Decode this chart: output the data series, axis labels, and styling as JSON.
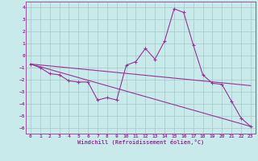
{
  "xlabel": "Windchill (Refroidissement éolien,°C)",
  "bg_color": "#c8eaea",
  "line_color": "#993399",
  "grid_color": "#aaccaa",
  "xlim": [
    -0.5,
    23.5
  ],
  "ylim": [
    -6.5,
    4.5
  ],
  "xticks": [
    0,
    1,
    2,
    3,
    4,
    5,
    6,
    7,
    8,
    9,
    10,
    11,
    12,
    13,
    14,
    15,
    16,
    17,
    18,
    19,
    20,
    21,
    22,
    23
  ],
  "yticks": [
    -6,
    -5,
    -4,
    -3,
    -2,
    -1,
    0,
    1,
    2,
    3,
    4
  ],
  "line1_x": [
    0,
    1,
    2,
    3,
    4,
    5,
    6,
    7,
    8,
    9,
    10,
    11,
    12,
    13,
    14,
    15,
    16,
    17,
    18,
    19,
    20,
    21,
    22,
    23
  ],
  "line1_y": [
    -0.7,
    -1.0,
    -1.5,
    -1.6,
    -2.1,
    -2.2,
    -2.2,
    -3.7,
    -3.5,
    -3.7,
    -0.8,
    -0.5,
    0.6,
    -0.3,
    1.2,
    3.9,
    3.6,
    0.9,
    -1.6,
    -2.3,
    -2.4,
    -3.8,
    -5.2,
    -5.9
  ],
  "line2_x": [
    0,
    23
  ],
  "line2_y": [
    -0.7,
    -5.9
  ],
  "line3_x": [
    0,
    23
  ],
  "line3_y": [
    -0.7,
    -2.5
  ]
}
